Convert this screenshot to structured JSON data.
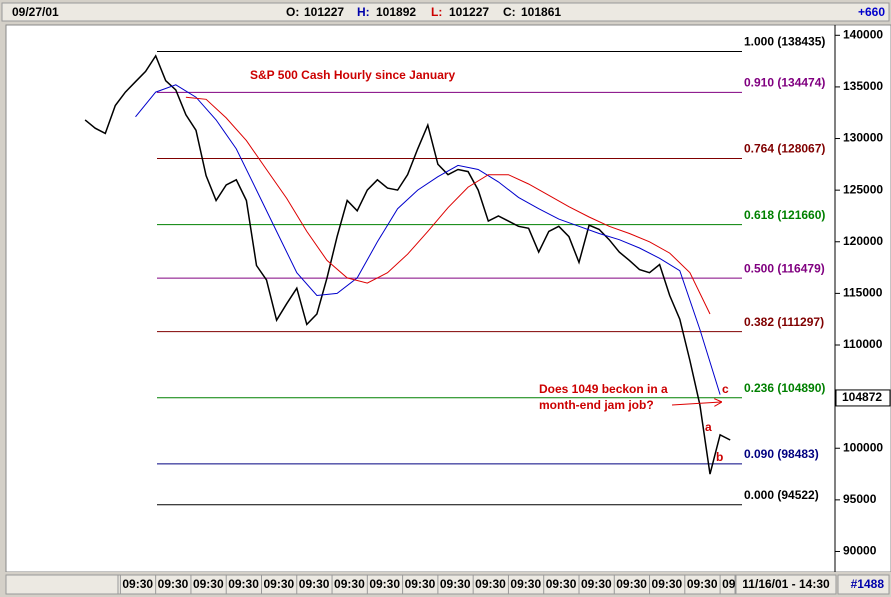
{
  "header": {
    "date": "09/27/01",
    "open_label": "O:",
    "open": "101227",
    "high_label": "H:",
    "high": "101892",
    "low_label": "L:",
    "low": "101227",
    "close_label": "C:",
    "close": "101861",
    "change": "+660"
  },
  "footer": {
    "datetime": "11/16/01 - 14:30",
    "bar_count": "#1488"
  },
  "chart_data": {
    "type": "line",
    "title": "S&P 500 Cash Hourly since January",
    "annotations": [
      "Does 1049 beckon in a",
      "month-end jam job?",
      "a",
      "b",
      "c"
    ],
    "xlim": [
      -15.3,
      148.8
    ],
    "ylim": [
      88400,
      140900
    ],
    "yticks": [
      140000,
      135000,
      130000,
      125000,
      120000,
      115000,
      110000,
      105000,
      100000,
      95000,
      90000
    ],
    "xticks": [
      {
        "value": 7,
        "label": "09:30"
      },
      {
        "value": 14,
        "label": "09:30"
      },
      {
        "value": 21,
        "label": "09:30"
      },
      {
        "value": 28,
        "label": "09:30"
      },
      {
        "value": 35,
        "label": "09:30"
      },
      {
        "value": 42,
        "label": "09:30"
      },
      {
        "value": 49,
        "label": "09:30"
      },
      {
        "value": 56,
        "label": "09:30"
      },
      {
        "value": 63,
        "label": "09:30"
      },
      {
        "value": 70,
        "label": "09:30"
      },
      {
        "value": 77,
        "label": "09:30"
      },
      {
        "value": 84,
        "label": "09:30"
      },
      {
        "value": 91,
        "label": "09:30"
      },
      {
        "value": 98,
        "label": "09:30"
      },
      {
        "value": 105,
        "label": "09:30"
      },
      {
        "value": 112,
        "label": "09:30"
      },
      {
        "value": 119,
        "label": "09:30"
      },
      {
        "value": 126,
        "label": "09"
      }
    ],
    "last_price": 104872,
    "series": [
      {
        "color": "#000000",
        "x": [
          0,
          2,
          4,
          6,
          8,
          10,
          12,
          14,
          16,
          18,
          20,
          22,
          24,
          26,
          28,
          30,
          32,
          34,
          36,
          38,
          40,
          42,
          44,
          46,
          48,
          50,
          52,
          54,
          56,
          58,
          60,
          62,
          64,
          66,
          68,
          70,
          72,
          74,
          76,
          78,
          80,
          82,
          84,
          86,
          88,
          90,
          92,
          94,
          96,
          98,
          100,
          102,
          104,
          106,
          108,
          110,
          112,
          114,
          116,
          118,
          120,
          122,
          124,
          126,
          128
        ],
        "values": [
          131800,
          131000,
          130500,
          133200,
          134500,
          135500,
          136500,
          138000,
          135600,
          134700,
          132300,
          130800,
          126400,
          124000,
          125500,
          126000,
          124000,
          117700,
          116300,
          112400,
          114000,
          115500,
          112000,
          113000,
          116500,
          120500,
          124000,
          123000,
          125000,
          126000,
          125200,
          125000,
          126500,
          129000,
          131300,
          127500,
          126500,
          127000,
          126800,
          125000,
          122000,
          122500,
          122000,
          121500,
          121300,
          119000,
          121000,
          121500,
          120500,
          118000,
          121600,
          121200,
          120200,
          119000,
          118200,
          117300,
          117000,
          117800,
          114800,
          112500,
          108500,
          104200,
          97500,
          101300,
          100800
        ]
      },
      {
        "color": "#0000cc",
        "x": [
          10,
          14,
          18,
          22,
          26,
          30,
          34,
          38,
          42,
          46,
          50,
          54,
          58,
          62,
          66,
          70,
          74,
          78,
          82,
          86,
          90,
          94,
          98,
          102,
          106,
          110,
          114,
          118,
          122,
          126
        ],
        "values": [
          132100,
          134500,
          135200,
          134000,
          131800,
          129000,
          125000,
          121000,
          117000,
          114800,
          115000,
          116500,
          120000,
          123200,
          125000,
          126300,
          127400,
          127000,
          125800,
          124300,
          123200,
          122200,
          121500,
          120800,
          120200,
          119400,
          118400,
          117200,
          111500,
          105200
        ]
      },
      {
        "color": "#dd0000",
        "x": [
          20,
          24,
          28,
          32,
          36,
          40,
          44,
          48,
          52,
          56,
          60,
          64,
          68,
          72,
          76,
          80,
          84,
          88,
          92,
          96,
          100,
          104,
          108,
          112,
          116,
          120,
          124
        ],
        "values": [
          134000,
          133800,
          132000,
          129800,
          127000,
          124200,
          121000,
          118200,
          116500,
          116000,
          117000,
          118800,
          121000,
          123300,
          125300,
          126500,
          126500,
          125600,
          124500,
          123400,
          122400,
          121500,
          120800,
          120000,
          118900,
          117000,
          113000
        ]
      }
    ],
    "fib_levels": [
      {
        "label": "1.000 (138435)",
        "value": 138435,
        "color": "#000000"
      },
      {
        "label": "0.910 (134474)",
        "value": 134474,
        "color": "#800080"
      },
      {
        "label": "0.764 (128067)",
        "value": 128067,
        "color": "#800000"
      },
      {
        "label": "0.618 (121660)",
        "value": 121660,
        "color": "#008000"
      },
      {
        "label": "0.500 (116479)",
        "value": 116479,
        "color": "#800080"
      },
      {
        "label": "0.382 (111297)",
        "value": 111297,
        "color": "#800000"
      },
      {
        "label": "0.236 (104890)",
        "value": 104890,
        "color": "#008000"
      },
      {
        "label": "0.090 (98483)",
        "value": 98483,
        "color": "#000080"
      },
      {
        "label": "0.000 (94522)",
        "value": 94522,
        "color": "#000000"
      }
    ]
  }
}
